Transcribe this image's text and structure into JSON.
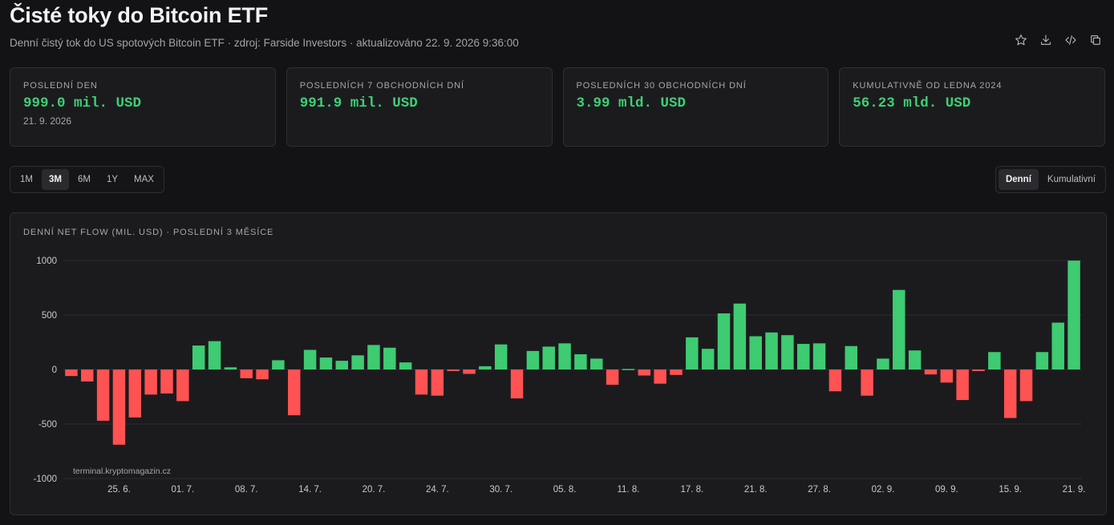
{
  "header": {
    "title": "Čisté toky do Bitcoin ETF",
    "subtitle": "Denní čistý tok do US spotových Bitcoin ETF · zdroj: Farside Investors · aktualizováno 22. 9. 2026 9:36:00"
  },
  "actions": [
    {
      "name": "star-icon"
    },
    {
      "name": "download-icon"
    },
    {
      "name": "code-icon"
    },
    {
      "name": "copy-icon"
    }
  ],
  "cards": [
    {
      "label": "Poslední den",
      "value": "999.0 mil. USD",
      "sub": "21. 9. 2026"
    },
    {
      "label": "Posledních 7 obchodních dní",
      "value": "991.9 mil. USD",
      "sub": ""
    },
    {
      "label": "Posledních 30 obchodních dní",
      "value": "3.99 mld. USD",
      "sub": ""
    },
    {
      "label": "Kumulativně od ledna 2024",
      "value": "56.23 mld. USD",
      "sub": ""
    }
  ],
  "ranges": [
    "1M",
    "3M",
    "6M",
    "1Y",
    "MAX"
  ],
  "active_range": "3M",
  "modes": [
    "Denní",
    "Kumulativní"
  ],
  "active_mode": "Denní",
  "panel": {
    "title": "Denní net flow (mil. USD) · poslední 3 měsíce",
    "watermark": "terminal.kryptomagazin.cz"
  },
  "colors": {
    "positive": "#3ecb71",
    "negative": "#ff5252",
    "accent_text": "#3fcf74"
  },
  "chart_data": {
    "type": "bar",
    "ylim": [
      -1000,
      1000
    ],
    "yticks": [
      1000,
      500,
      0,
      -500,
      -1000
    ],
    "grid": true,
    "xticks": [
      "25. 6.",
      "01. 7.",
      "08. 7.",
      "14. 7.",
      "20. 7.",
      "24. 7.",
      "30. 7.",
      "05. 8.",
      "11. 8.",
      "17. 8.",
      "21. 8.",
      "27. 8.",
      "02. 9.",
      "09. 9.",
      "15. 9.",
      "21. 9."
    ],
    "xtick_bar_index": [
      3,
      7,
      11,
      15,
      19,
      23,
      27,
      31,
      35,
      39,
      43,
      47,
      51,
      55,
      59,
      63
    ],
    "values": [
      -60,
      -110,
      -470,
      -690,
      -440,
      -230,
      -220,
      -290,
      220,
      260,
      20,
      -80,
      -90,
      85,
      -420,
      180,
      110,
      80,
      130,
      225,
      200,
      65,
      -230,
      -240,
      -15,
      -40,
      30,
      230,
      -265,
      170,
      210,
      240,
      140,
      100,
      -140,
      5,
      -55,
      -130,
      -50,
      295,
      190,
      515,
      605,
      305,
      340,
      315,
      235,
      240,
      -200,
      215,
      -240,
      100,
      730,
      175,
      -45,
      -120,
      -280,
      -15,
      160,
      -445,
      -290,
      160,
      430,
      999
    ]
  }
}
